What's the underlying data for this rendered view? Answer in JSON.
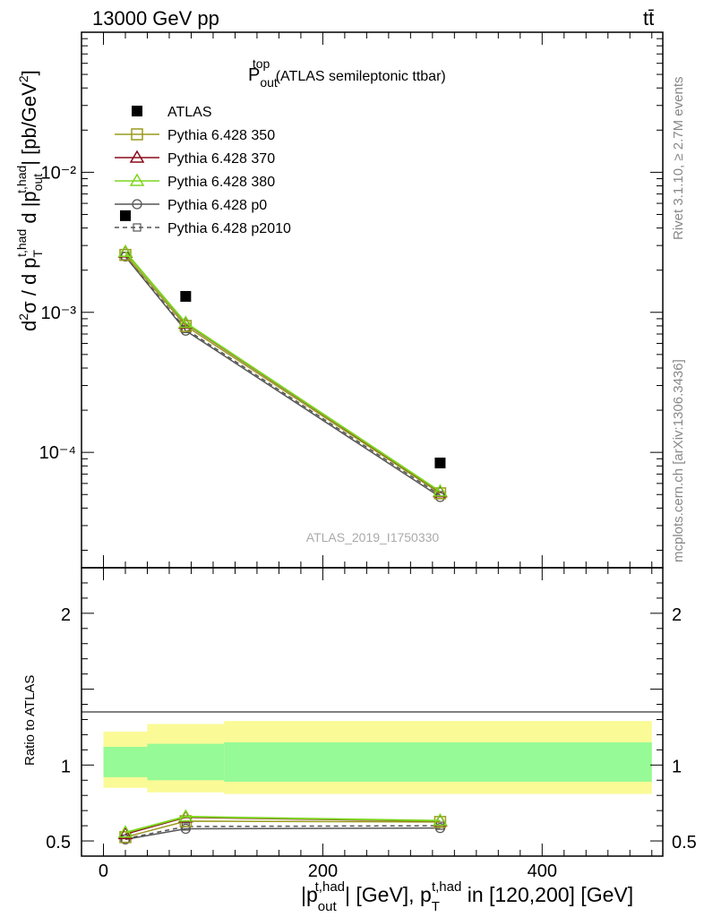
{
  "header": {
    "left": "13000 GeV pp",
    "right": "tt̄"
  },
  "side_labels": {
    "rivet": "Rivet 3.1.10, ≥ 2.7M events",
    "mcplots": "mcplots.cern.ch [arXiv:1306.3436]"
  },
  "plot_title": {
    "main": "P",
    "sub": "out",
    "sup": "top",
    "rest": " (ATLAS semileptonic ttbar)"
  },
  "analysis_id": "ATLAS_2019_I1750330",
  "colors": {
    "data": "#000000",
    "p350": "#9a9a1e",
    "p370": "#8b0a1a",
    "p380": "#7cd61e",
    "p0": "#555555",
    "p2010": "#555555",
    "band_inner": "#96fa96",
    "band_outer": "#fafa96"
  },
  "chart_data": [
    {
      "type": "scatter",
      "name": "main",
      "yscale": "log",
      "xlim": [
        -20,
        510
      ],
      "ylim": [
        1.5e-05,
        0.1
      ],
      "xlabel": "|p_out^t,had| [GeV], p_T^t,had in [120,200] [GeV]",
      "ylabel": "d²σ / d p_T^t,had d |p_out^t,had| [pb/GeV²]",
      "ytick_labels": [
        "10⁻⁴",
        "10⁻³",
        "10⁻²"
      ],
      "ytick_values": [
        0.0001,
        0.001,
        0.01
      ],
      "legend_position": "top-left",
      "legend": [
        "ATLAS",
        "Pythia 6.428 350",
        "Pythia 6.428 370",
        "Pythia 6.428 380",
        "Pythia 6.428 p0",
        "Pythia 6.428 p2010"
      ],
      "x": [
        20,
        75,
        307
      ],
      "series": [
        {
          "name": "ATLAS",
          "key": "data",
          "marker": "filled-square",
          "line": "none",
          "values": [
            0.0049,
            0.0013,
            8.4e-05
          ]
        },
        {
          "name": "Pythia 6.428 350",
          "key": "p350",
          "marker": "open-square",
          "line": "solid",
          "values": [
            0.00257,
            0.0008,
            5.1e-05
          ]
        },
        {
          "name": "Pythia 6.428 370",
          "key": "p370",
          "marker": "open-triangle",
          "line": "solid",
          "values": [
            0.00268,
            0.00083,
            5.2e-05
          ]
        },
        {
          "name": "Pythia 6.428 380",
          "key": "p380",
          "marker": "open-triangle",
          "line": "solid",
          "values": [
            0.0027,
            0.00084,
            5.25e-05
          ]
        },
        {
          "name": "Pythia 6.428 p0",
          "key": "p0",
          "marker": "open-circle",
          "line": "solid",
          "values": [
            0.0025,
            0.00074,
            4.8e-05
          ]
        },
        {
          "name": "Pythia 6.428 p2010",
          "key": "p2010",
          "marker": "open-square-small",
          "line": "dashed",
          "values": [
            0.00252,
            0.00076,
            4.95e-05
          ]
        }
      ]
    },
    {
      "type": "scatter",
      "name": "ratio",
      "xlim": [
        -20,
        510
      ],
      "ylim": [
        0.4,
        2.3
      ],
      "ylabel": "Ratio to ATLAS",
      "ytick_labels": [
        "0.5",
        "1",
        "2"
      ],
      "ytick_values": [
        0.5,
        1,
        2
      ],
      "xtick_labels": [
        "0",
        "200",
        "400"
      ],
      "xtick_values": [
        0,
        200,
        400
      ],
      "x": [
        20,
        75,
        307
      ],
      "bands": [
        {
          "x0": 0,
          "x1": 40,
          "inner": [
            0.92,
            1.12
          ],
          "outer": [
            0.85,
            1.22
          ]
        },
        {
          "x0": 40,
          "x1": 110,
          "inner": [
            0.9,
            1.14
          ],
          "outer": [
            0.82,
            1.27
          ]
        },
        {
          "x0": 110,
          "x1": 500,
          "inner": [
            0.89,
            1.15
          ],
          "outer": [
            0.81,
            1.29
          ]
        }
      ],
      "series": [
        {
          "name": "Pythia 6.428 350",
          "key": "p350",
          "values": [
            0.525,
            0.63,
            0.625
          ]
        },
        {
          "name": "Pythia 6.428 370",
          "key": "p370",
          "values": [
            0.545,
            0.655,
            0.63
          ]
        },
        {
          "name": "Pythia 6.428 380",
          "key": "p380",
          "values": [
            0.555,
            0.66,
            0.633
          ]
        },
        {
          "name": "Pythia 6.428 p0",
          "key": "p0",
          "values": [
            0.51,
            0.58,
            0.585
          ]
        },
        {
          "name": "Pythia 6.428 p2010",
          "key": "p2010",
          "values": [
            0.515,
            0.595,
            0.6
          ]
        }
      ]
    }
  ]
}
